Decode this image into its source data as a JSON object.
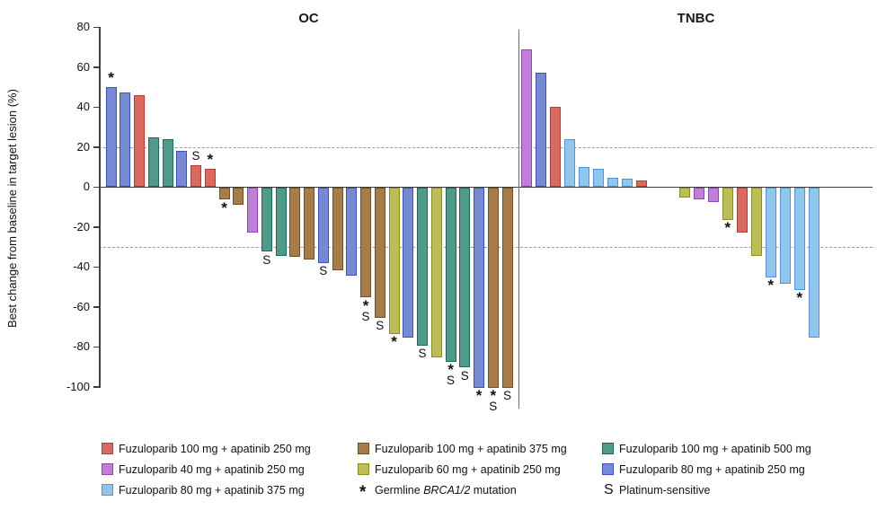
{
  "figure_title_left": "OC",
  "figure_title_right": "TNBC",
  "chart_data": {
    "type": "bar",
    "title": "",
    "xlabel": "",
    "ylabel": "Best change from baseline in target lesion (%)",
    "ylim": [
      -100,
      80
    ],
    "yticks": [
      80,
      60,
      40,
      20,
      0,
      -20,
      -40,
      -60,
      -80,
      -100
    ],
    "thresholds": [
      20,
      -30
    ],
    "grid": "off",
    "legend_position": "bottom",
    "colors": {
      "fuz100_apa250": {
        "fill": "#D86A60",
        "stroke": "#B04038"
      },
      "fuz40_apa250": {
        "fill": "#BF7FD6",
        "stroke": "#9145B5"
      },
      "fuz80_apa375": {
        "fill": "#92C5EB",
        "stroke": "#4D96D9"
      },
      "fuz100_apa375": {
        "fill": "#A67C48",
        "stroke": "#6E4F26"
      },
      "fuz60_apa250": {
        "fill": "#BCBE55",
        "stroke": "#8C8F1F"
      },
      "fuz100_apa500": {
        "fill": "#4E9B8C",
        "stroke": "#1E695A"
      },
      "fuz80_apa250": {
        "fill": "#7689D4",
        "stroke": "#3E50BE"
      }
    },
    "panels": [
      {
        "title": "OC",
        "bars": [
          {
            "value": 50,
            "group": "fuz80_apa250",
            "mark": "star"
          },
          {
            "value": 47.5,
            "group": "fuz80_apa250",
            "mark": ""
          },
          {
            "value": 46,
            "group": "fuz100_apa250",
            "mark": ""
          },
          {
            "value": 25,
            "group": "fuz100_apa500",
            "mark": ""
          },
          {
            "value": 24,
            "group": "fuz100_apa500",
            "mark": ""
          },
          {
            "value": 18,
            "group": "fuz80_apa250",
            "mark": ""
          },
          {
            "value": 11,
            "group": "fuz100_apa250",
            "mark": "s"
          },
          {
            "value": 9,
            "group": "fuz100_apa250",
            "mark": "star"
          },
          {
            "value": -6,
            "group": "fuz100_apa375",
            "mark": "star"
          },
          {
            "value": -8.5,
            "group": "fuz100_apa375",
            "mark": ""
          },
          {
            "value": -22.5,
            "group": "fuz40_apa250",
            "mark": ""
          },
          {
            "value": -32,
            "group": "fuz100_apa500",
            "mark": "s"
          },
          {
            "value": -34,
            "group": "fuz100_apa500",
            "mark": ""
          },
          {
            "value": -34.5,
            "group": "fuz100_apa375",
            "mark": ""
          },
          {
            "value": -36,
            "group": "fuz100_apa375",
            "mark": ""
          },
          {
            "value": -37.5,
            "group": "fuz80_apa250",
            "mark": "s"
          },
          {
            "value": -41.5,
            "group": "fuz100_apa375",
            "mark": ""
          },
          {
            "value": -44,
            "group": "fuz80_apa250",
            "mark": ""
          },
          {
            "value": -55,
            "group": "fuz100_apa375",
            "mark": "star_s"
          },
          {
            "value": -65,
            "group": "fuz100_apa375",
            "mark": "s"
          },
          {
            "value": -73,
            "group": "fuz60_apa250",
            "mark": "star"
          },
          {
            "value": -75,
            "group": "fuz80_apa250",
            "mark": ""
          },
          {
            "value": -79,
            "group": "fuz100_apa500",
            "mark": "s"
          },
          {
            "value": -85,
            "group": "fuz60_apa250",
            "mark": ""
          },
          {
            "value": -87,
            "group": "fuz100_apa500",
            "mark": "star_s"
          },
          {
            "value": -90,
            "group": "fuz100_apa500",
            "mark": "s"
          },
          {
            "value": -100,
            "group": "fuz80_apa250",
            "mark": "star"
          },
          {
            "value": -100,
            "group": "fuz100_apa375",
            "mark": "star_s"
          },
          {
            "value": -100,
            "group": "fuz100_apa375",
            "mark": "s"
          }
        ]
      },
      {
        "title": "TNBC",
        "bars": [
          {
            "value": 69,
            "group": "fuz40_apa250",
            "mark": ""
          },
          {
            "value": 57,
            "group": "fuz80_apa250",
            "mark": ""
          },
          {
            "value": 40,
            "group": "fuz100_apa250",
            "mark": ""
          },
          {
            "value": 24,
            "group": "fuz80_apa375",
            "mark": ""
          },
          {
            "value": 10,
            "group": "fuz80_apa375",
            "mark": ""
          },
          {
            "value": 9,
            "group": "fuz80_apa375",
            "mark": ""
          },
          {
            "value": 4.5,
            "group": "fuz80_apa375",
            "mark": ""
          },
          {
            "value": 4,
            "group": "fuz80_apa375",
            "mark": ""
          },
          {
            "value": 3.5,
            "group": "fuz100_apa250",
            "mark": ""
          },
          {
            "value": 0,
            "group": "none",
            "mark": ""
          },
          {
            "value": 0,
            "group": "none",
            "mark": ""
          },
          {
            "value": -5,
            "group": "fuz60_apa250",
            "mark": ""
          },
          {
            "value": -6,
            "group": "fuz40_apa250",
            "mark": ""
          },
          {
            "value": -7,
            "group": "fuz40_apa250",
            "mark": ""
          },
          {
            "value": -16,
            "group": "fuz60_apa250",
            "mark": "star"
          },
          {
            "value": -22.5,
            "group": "fuz100_apa250",
            "mark": ""
          },
          {
            "value": -34,
            "group": "fuz60_apa250",
            "mark": ""
          },
          {
            "value": -45,
            "group": "fuz80_apa375",
            "mark": "star"
          },
          {
            "value": -48,
            "group": "fuz80_apa375",
            "mark": ""
          },
          {
            "value": -51,
            "group": "fuz80_apa375",
            "mark": "star"
          },
          {
            "value": -75,
            "group": "fuz80_apa375",
            "mark": ""
          }
        ]
      }
    ]
  },
  "legend": {
    "columns": [
      [
        {
          "type": "swatch",
          "group": "fuz100_apa250",
          "label": "Fuzuloparib 100 mg + apatinib 250 mg"
        },
        {
          "type": "swatch",
          "group": "fuz40_apa250",
          "label": "Fuzuloparib 40 mg + apatinib 250 mg"
        },
        {
          "type": "swatch",
          "group": "fuz80_apa375",
          "label": "Fuzuloparib 80 mg + apatinib 375 mg"
        }
      ],
      [
        {
          "type": "swatch",
          "group": "fuz100_apa375",
          "label": "Fuzuloparib 100 mg + apatinib 375 mg"
        },
        {
          "type": "swatch",
          "group": "fuz60_apa250",
          "label": "Fuzuloparib 60 mg + apatinib 250 mg"
        },
        {
          "type": "symbol",
          "symbol": "*",
          "pre": "Germline ",
          "italic": "BRCA1/2",
          "post": " mutation"
        }
      ],
      [
        {
          "type": "swatch",
          "group": "fuz100_apa500",
          "label": "Fuzuloparib 100 mg + apatinib 500 mg"
        },
        {
          "type": "swatch",
          "group": "fuz80_apa250",
          "label": "Fuzuloparib 80 mg + apatinib 250 mg"
        },
        {
          "type": "symbol",
          "symbol": "S",
          "pre": "Platinum-sensitive",
          "italic": "",
          "post": ""
        }
      ]
    ]
  }
}
